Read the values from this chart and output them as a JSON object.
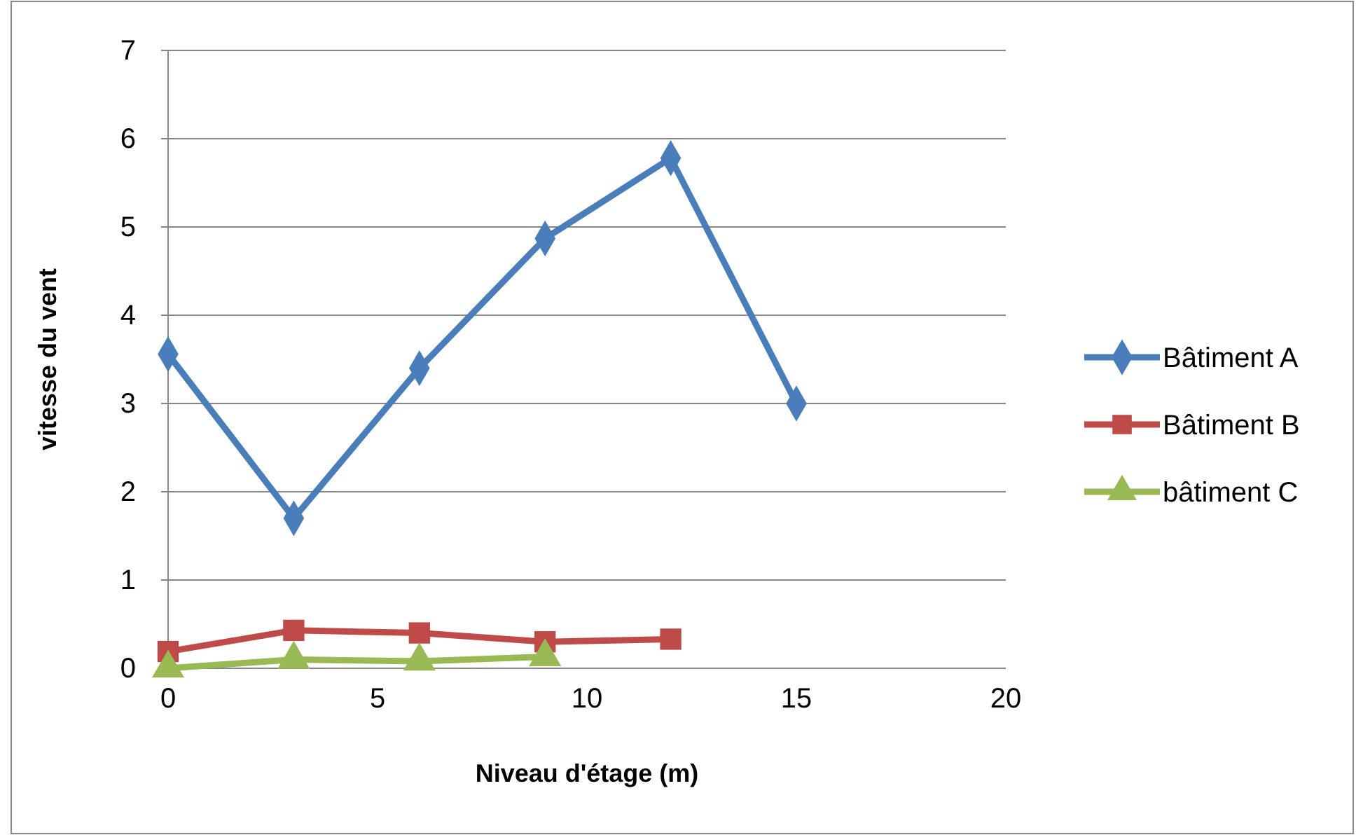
{
  "chart_data": {
    "type": "line",
    "xlabel": "Niveau d'étage (m)",
    "ylabel": "vitesse du vent",
    "x": [
      0,
      3,
      6,
      9,
      12,
      15
    ],
    "series": [
      {
        "name": "Bâtiment A",
        "color": "#4a7ebb",
        "marker": "diamond",
        "values": [
          3.56,
          1.7,
          3.4,
          4.87,
          5.78,
          3.0
        ]
      },
      {
        "name": "Bâtiment B",
        "color": "#be4b48",
        "marker": "square",
        "values": [
          0.19,
          0.43,
          0.4,
          0.3,
          0.33,
          null
        ]
      },
      {
        "name": "bâtiment C",
        "color": "#98b954",
        "marker": "triangle",
        "values": [
          0.0,
          0.1,
          0.08,
          0.13,
          null,
          null
        ]
      }
    ],
    "xlim": [
      0,
      20
    ],
    "xticks": [
      0,
      5,
      10,
      15,
      20
    ],
    "ylim": [
      0,
      7
    ],
    "yticks": [
      0,
      1,
      2,
      3,
      4,
      5,
      6,
      7
    ],
    "grid": "y",
    "legend": "right",
    "line_style": "solid"
  }
}
